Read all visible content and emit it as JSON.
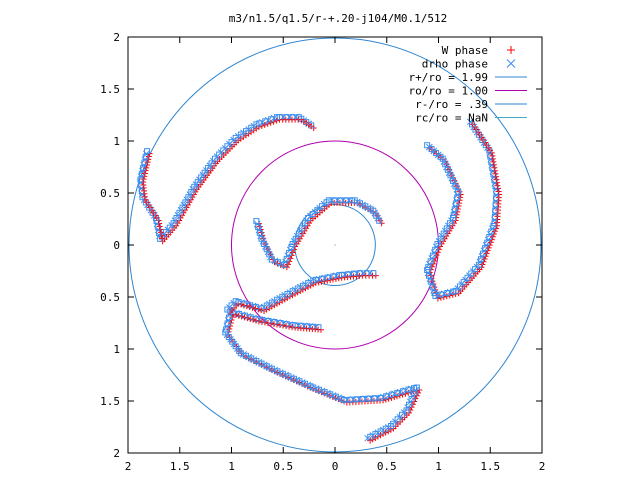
{
  "chart_data": {
    "type": "scatter",
    "title": "m3/n1.5/q1.5/r-+.20-j104/M0.1/512",
    "xlabel": "",
    "ylabel": "",
    "xlim": [
      -2,
      2
    ],
    "ylim": [
      -2,
      2
    ],
    "x_ticks": [
      "2",
      "1.5",
      "1",
      "0.5",
      "0",
      "0.5",
      "1",
      "1.5",
      "2"
    ],
    "y_ticks": [
      "2",
      "1.5",
      "1",
      "0.5",
      "0",
      "0.5",
      "1",
      "1.5",
      "2"
    ],
    "grid": false,
    "legend_position": "top-right",
    "series": [
      {
        "name": "W phase",
        "marker": "+",
        "color": "#ff0000"
      },
      {
        "name": "drho phase",
        "marker": "x",
        "color": "#3b8ff0"
      }
    ],
    "circles": [
      {
        "name": "r+/ro = 1.99",
        "radius": 1.99,
        "color": "#2f86d0"
      },
      {
        "name": "ro/ro = 1.00",
        "radius": 1.0,
        "color": "#b000b0"
      },
      {
        "name": "r-/ro = .39",
        "radius": 0.39,
        "color": "#2f86d0"
      },
      {
        "name": "rc/ro = NaN",
        "radius": null,
        "color": "#3cb0c0"
      }
    ],
    "arms": [
      [
        [
          -0.22,
          1.14
        ],
        [
          -0.34,
          1.22
        ],
        [
          -0.55,
          1.22
        ],
        [
          -0.75,
          1.15
        ],
        [
          -0.95,
          1.02
        ],
        [
          -1.15,
          0.82
        ],
        [
          -1.35,
          0.55
        ],
        [
          -1.55,
          0.2
        ],
        [
          -1.68,
          0.05
        ],
        [
          -1.72,
          0.25
        ],
        [
          -1.85,
          0.45
        ],
        [
          -1.87,
          0.62
        ],
        [
          -1.8,
          0.92
        ]
      ],
      [
        [
          0.9,
          0.95
        ],
        [
          1.05,
          0.82
        ],
        [
          1.2,
          0.5
        ],
        [
          1.15,
          0.25
        ],
        [
          1.0,
          0.0
        ],
        [
          0.9,
          -0.25
        ],
        [
          0.98,
          -0.5
        ],
        [
          1.18,
          -0.45
        ],
        [
          1.4,
          -0.2
        ],
        [
          1.55,
          0.2
        ],
        [
          1.57,
          0.5
        ],
        [
          1.5,
          0.9
        ],
        [
          1.3,
          1.2
        ]
      ],
      [
        [
          -0.15,
          -0.8
        ],
        [
          -0.4,
          -0.78
        ],
        [
          -0.75,
          -0.72
        ],
        [
          -1.0,
          -0.65
        ],
        [
          -1.05,
          -0.85
        ],
        [
          -0.9,
          -1.05
        ],
        [
          -0.6,
          -1.2
        ],
        [
          -0.2,
          -1.38
        ],
        [
          0.1,
          -1.5
        ],
        [
          0.45,
          -1.48
        ],
        [
          0.72,
          -1.4
        ],
        [
          0.8,
          -1.38
        ],
        [
          0.7,
          -1.6
        ],
        [
          0.55,
          -1.75
        ],
        [
          0.3,
          -1.88
        ]
      ],
      [
        [
          -0.75,
          0.22
        ],
        [
          -0.7,
          0.05
        ],
        [
          -0.6,
          -0.15
        ],
        [
          -0.48,
          -0.2
        ],
        [
          -0.4,
          0.0
        ],
        [
          -0.25,
          0.25
        ],
        [
          -0.05,
          0.42
        ],
        [
          0.2,
          0.42
        ],
        [
          0.38,
          0.32
        ],
        [
          0.45,
          0.2
        ]
      ],
      [
        [
          0.38,
          -0.28
        ],
        [
          0.25,
          -0.28
        ],
        [
          0.05,
          -0.3
        ],
        [
          -0.2,
          -0.35
        ],
        [
          -0.45,
          -0.48
        ],
        [
          -0.7,
          -0.62
        ],
        [
          -0.95,
          -0.55
        ],
        [
          -1.05,
          -0.65
        ]
      ]
    ]
  }
}
